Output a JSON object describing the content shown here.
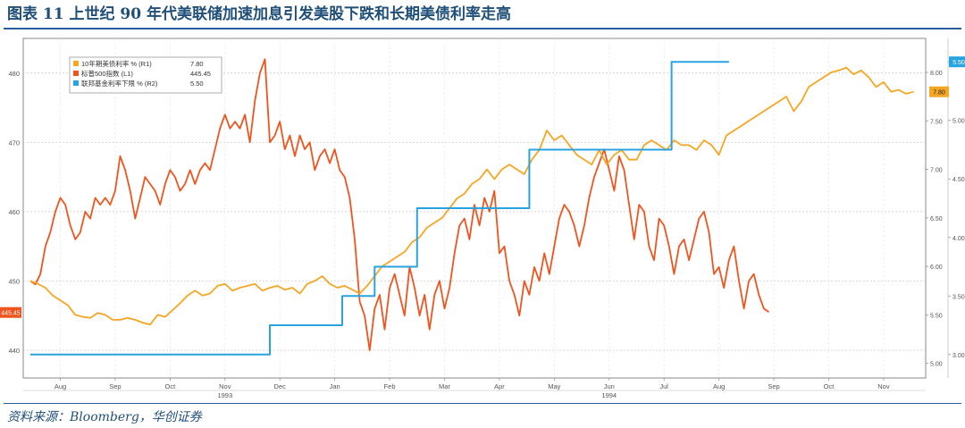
{
  "figure": {
    "title": "图表 11  上世纪 90 年代美联储加速加息引发美股下跌和长期美债利率走高",
    "source": "资料来源：Bloomberg，华创证券"
  },
  "chart_data": {
    "type": "line",
    "x_ticks": [
      "Aug",
      "Sep",
      "Oct",
      "Nov",
      "Dec",
      "Jan",
      "Feb",
      "Mar",
      "Apr",
      "May",
      "Jun",
      "Jul",
      "Aug",
      "Sep",
      "Oct",
      "Nov"
    ],
    "year_labels": [
      "1993",
      "1994"
    ],
    "left_axis": {
      "ticks": [
        440,
        450,
        460,
        470,
        480
      ],
      "ylim": [
        436,
        485
      ]
    },
    "right_axis_outer": {
      "ticks": [
        "8.00",
        "7.50",
        "7.00",
        "6.50",
        "6.00",
        "5.50",
        "5.00"
      ],
      "ylim": [
        4.85,
        8.35
      ]
    },
    "right_axis_inner": {
      "ticks": [
        "5.50",
        "5.00",
        "4.50",
        "4.00",
        "3.50",
        "3.00"
      ],
      "ylim": [
        2.8,
        5.7
      ]
    },
    "legend": [
      {
        "name": "10年期美债利率 % (R1)",
        "value": "7.80",
        "color": "#f5a623"
      },
      {
        "name": "标普500指数 (L1)",
        "value": "445.45",
        "color": "#f0541e"
      },
      {
        "name": "联邦基金利率下限 % (R2)",
        "value": "5.50",
        "color": "#29a3e0"
      }
    ],
    "last_value_flags": {
      "left": "445.45",
      "r1": "7.80",
      "r2": "5.50"
    },
    "series": [
      {
        "name": "标普500指数 (L1)",
        "axis": "L1",
        "color": "#f0541e",
        "points": [
          [
            0.0,
            450.0
          ],
          [
            0.2,
            449.5
          ],
          [
            0.4,
            451.0
          ],
          [
            0.6,
            455.0
          ],
          [
            0.8,
            457.0
          ],
          [
            1.0,
            460.0
          ],
          [
            1.2,
            462.0
          ],
          [
            1.4,
            461.0
          ],
          [
            1.6,
            458.0
          ],
          [
            1.8,
            456.0
          ],
          [
            2.0,
            457.0
          ],
          [
            2.2,
            460.0
          ],
          [
            2.4,
            459.0
          ],
          [
            2.6,
            462.0
          ],
          [
            2.8,
            461.0
          ],
          [
            3.0,
            462.0
          ],
          [
            3.2,
            461.0
          ],
          [
            3.4,
            463.0
          ],
          [
            3.6,
            468.0
          ],
          [
            3.8,
            466.0
          ],
          [
            4.0,
            463.0
          ],
          [
            4.2,
            459.0
          ],
          [
            4.4,
            462.0
          ],
          [
            4.6,
            465.0
          ],
          [
            4.8,
            464.0
          ],
          [
            5.0,
            463.0
          ],
          [
            5.2,
            461.0
          ],
          [
            5.4,
            464.0
          ],
          [
            5.6,
            466.0
          ],
          [
            5.8,
            465.0
          ],
          [
            6.0,
            463.0
          ],
          [
            6.2,
            464.0
          ],
          [
            6.4,
            466.0
          ],
          [
            6.6,
            464.0
          ],
          [
            6.8,
            466.0
          ],
          [
            7.0,
            467.0
          ],
          [
            7.2,
            466.0
          ],
          [
            7.4,
            469.0
          ],
          [
            7.6,
            472.0
          ],
          [
            7.8,
            474.0
          ],
          [
            8.0,
            472.0
          ],
          [
            8.2,
            473.0
          ],
          [
            8.4,
            472.0
          ],
          [
            8.6,
            474.0
          ],
          [
            8.8,
            470.0
          ],
          [
            9.0,
            476.0
          ],
          [
            9.2,
            480.0
          ],
          [
            9.4,
            482.0
          ],
          [
            9.6,
            470.0
          ],
          [
            9.8,
            471.0
          ],
          [
            10.0,
            473.0
          ],
          [
            10.2,
            469.0
          ],
          [
            10.4,
            471.0
          ],
          [
            10.6,
            468.0
          ],
          [
            10.8,
            471.0
          ],
          [
            11.0,
            469.0
          ],
          [
            11.2,
            470.0
          ],
          [
            11.4,
            466.0
          ],
          [
            11.6,
            468.0
          ],
          [
            11.8,
            469.0
          ],
          [
            12.0,
            467.0
          ],
          [
            12.2,
            469.0
          ],
          [
            12.4,
            466.0
          ],
          [
            12.6,
            465.0
          ],
          [
            12.8,
            462.0
          ],
          [
            13.0,
            456.0
          ],
          [
            13.2,
            447.0
          ],
          [
            13.4,
            445.0
          ],
          [
            13.6,
            440.0
          ],
          [
            13.8,
            446.0
          ],
          [
            14.0,
            448.0
          ],
          [
            14.2,
            443.0
          ],
          [
            14.4,
            449.0
          ],
          [
            14.6,
            451.0
          ],
          [
            14.8,
            448.0
          ],
          [
            15.0,
            445.0
          ],
          [
            15.2,
            452.0
          ],
          [
            15.4,
            449.0
          ],
          [
            15.6,
            445.0
          ],
          [
            15.8,
            448.0
          ],
          [
            16.0,
            443.0
          ],
          [
            16.2,
            448.0
          ],
          [
            16.4,
            450.0
          ],
          [
            16.6,
            446.0
          ],
          [
            16.8,
            449.0
          ],
          [
            17.0,
            454.0
          ],
          [
            17.2,
            458.0
          ],
          [
            17.4,
            459.0
          ],
          [
            17.6,
            456.0
          ],
          [
            17.8,
            461.0
          ],
          [
            18.0,
            458.0
          ],
          [
            18.2,
            462.0
          ],
          [
            18.4,
            460.0
          ],
          [
            18.6,
            463.0
          ],
          [
            18.8,
            454.0
          ],
          [
            19.0,
            455.0
          ],
          [
            19.2,
            450.0
          ],
          [
            19.4,
            448.0
          ],
          [
            19.6,
            445.0
          ],
          [
            19.8,
            450.0
          ],
          [
            20.0,
            448.0
          ],
          [
            20.2,
            452.0
          ],
          [
            20.4,
            450.0
          ],
          [
            20.6,
            454.0
          ],
          [
            20.8,
            451.0
          ],
          [
            21.0,
            455.0
          ],
          [
            21.2,
            459.0
          ],
          [
            21.4,
            461.0
          ],
          [
            21.6,
            460.0
          ],
          [
            21.8,
            458.0
          ],
          [
            22.0,
            455.0
          ],
          [
            22.2,
            458.0
          ],
          [
            22.4,
            462.0
          ],
          [
            22.6,
            465.0
          ],
          [
            22.8,
            467.0
          ],
          [
            23.0,
            469.0
          ],
          [
            23.2,
            466.0
          ],
          [
            23.4,
            463.0
          ],
          [
            23.6,
            468.0
          ],
          [
            23.8,
            466.0
          ],
          [
            24.0,
            461.0
          ],
          [
            24.2,
            456.0
          ],
          [
            24.4,
            461.0
          ],
          [
            24.6,
            460.0
          ],
          [
            24.8,
            455.0
          ],
          [
            25.0,
            453.0
          ],
          [
            25.2,
            459.0
          ],
          [
            25.4,
            458.0
          ],
          [
            25.6,
            455.0
          ],
          [
            25.8,
            451.0
          ],
          [
            26.0,
            455.0
          ],
          [
            26.2,
            456.0
          ],
          [
            26.4,
            453.0
          ],
          [
            26.6,
            456.0
          ],
          [
            26.8,
            459.0
          ],
          [
            27.0,
            460.0
          ],
          [
            27.2,
            457.0
          ],
          [
            27.4,
            451.0
          ],
          [
            27.6,
            452.0
          ],
          [
            27.8,
            449.0
          ],
          [
            28.0,
            453.0
          ],
          [
            28.2,
            455.0
          ],
          [
            28.4,
            450.0
          ],
          [
            28.6,
            446.0
          ],
          [
            28.8,
            450.0
          ],
          [
            29.0,
            451.0
          ],
          [
            29.2,
            448.0
          ],
          [
            29.4,
            446.0
          ],
          [
            29.6,
            445.5
          ]
        ]
      },
      {
        "name": "10年期美债利率 % (R1)",
        "axis": "R1",
        "color": "#f5a623",
        "points": [
          [
            0.0,
            5.85
          ],
          [
            0.3,
            5.82
          ],
          [
            0.6,
            5.78
          ],
          [
            0.9,
            5.7
          ],
          [
            1.2,
            5.65
          ],
          [
            1.5,
            5.6
          ],
          [
            1.8,
            5.5
          ],
          [
            2.1,
            5.48
          ],
          [
            2.4,
            5.47
          ],
          [
            2.7,
            5.52
          ],
          [
            3.0,
            5.5
          ],
          [
            3.3,
            5.45
          ],
          [
            3.6,
            5.45
          ],
          [
            3.9,
            5.47
          ],
          [
            4.2,
            5.45
          ],
          [
            4.5,
            5.42
          ],
          [
            4.8,
            5.4
          ],
          [
            5.1,
            5.5
          ],
          [
            5.4,
            5.48
          ],
          [
            5.7,
            5.55
          ],
          [
            6.0,
            5.62
          ],
          [
            6.3,
            5.7
          ],
          [
            6.6,
            5.75
          ],
          [
            6.9,
            5.7
          ],
          [
            7.2,
            5.72
          ],
          [
            7.5,
            5.8
          ],
          [
            7.8,
            5.82
          ],
          [
            8.1,
            5.75
          ],
          [
            8.4,
            5.78
          ],
          [
            8.7,
            5.8
          ],
          [
            9.0,
            5.82
          ],
          [
            9.3,
            5.75
          ],
          [
            9.6,
            5.78
          ],
          [
            9.9,
            5.8
          ],
          [
            10.2,
            5.76
          ],
          [
            10.5,
            5.78
          ],
          [
            10.8,
            5.72
          ],
          [
            11.1,
            5.82
          ],
          [
            11.4,
            5.85
          ],
          [
            11.7,
            5.9
          ],
          [
            12.0,
            5.82
          ],
          [
            12.3,
            5.78
          ],
          [
            12.6,
            5.8
          ],
          [
            12.9,
            5.76
          ],
          [
            13.2,
            5.72
          ],
          [
            13.5,
            5.8
          ],
          [
            13.8,
            5.9
          ],
          [
            14.1,
            6.0
          ],
          [
            14.4,
            6.05
          ],
          [
            14.7,
            6.1
          ],
          [
            15.0,
            6.15
          ],
          [
            15.3,
            6.25
          ],
          [
            15.6,
            6.3
          ],
          [
            15.9,
            6.4
          ],
          [
            16.2,
            6.45
          ],
          [
            16.5,
            6.5
          ],
          [
            16.8,
            6.6
          ],
          [
            17.1,
            6.7
          ],
          [
            17.4,
            6.75
          ],
          [
            17.7,
            6.85
          ],
          [
            18.0,
            6.9
          ],
          [
            18.3,
            7.0
          ],
          [
            18.6,
            6.9
          ],
          [
            18.9,
            7.0
          ],
          [
            19.2,
            7.05
          ],
          [
            19.5,
            7.0
          ],
          [
            19.8,
            6.95
          ],
          [
            20.1,
            7.1
          ],
          [
            20.4,
            7.2
          ],
          [
            20.7,
            7.4
          ],
          [
            21.0,
            7.3
          ],
          [
            21.3,
            7.35
          ],
          [
            21.6,
            7.25
          ],
          [
            21.9,
            7.15
          ],
          [
            22.2,
            7.1
          ],
          [
            22.5,
            7.05
          ],
          [
            22.8,
            7.2
          ],
          [
            23.1,
            7.05
          ],
          [
            23.4,
            7.15
          ],
          [
            23.7,
            7.2
          ],
          [
            24.0,
            7.1
          ],
          [
            24.3,
            7.1
          ],
          [
            24.6,
            7.25
          ],
          [
            24.9,
            7.3
          ],
          [
            25.2,
            7.25
          ],
          [
            25.5,
            7.2
          ],
          [
            25.8,
            7.3
          ],
          [
            26.1,
            7.25
          ],
          [
            26.4,
            7.25
          ],
          [
            26.7,
            7.2
          ],
          [
            27.0,
            7.3
          ],
          [
            27.3,
            7.25
          ],
          [
            27.6,
            7.15
          ],
          [
            27.9,
            7.35
          ],
          [
            28.2,
            7.4
          ],
          [
            28.5,
            7.45
          ],
          [
            28.8,
            7.5
          ],
          [
            29.1,
            7.55
          ],
          [
            29.4,
            7.6
          ],
          [
            29.7,
            7.65
          ],
          [
            30.0,
            7.7
          ],
          [
            30.3,
            7.75
          ],
          [
            30.6,
            7.6
          ],
          [
            30.9,
            7.7
          ],
          [
            31.2,
            7.85
          ],
          [
            31.5,
            7.9
          ],
          [
            31.8,
            7.95
          ],
          [
            32.1,
            8.0
          ],
          [
            32.4,
            8.02
          ],
          [
            32.7,
            8.05
          ],
          [
            33.0,
            7.98
          ],
          [
            33.3,
            8.02
          ],
          [
            33.6,
            7.95
          ],
          [
            33.9,
            7.85
          ],
          [
            34.2,
            7.9
          ],
          [
            34.5,
            7.8
          ],
          [
            34.8,
            7.82
          ],
          [
            35.1,
            7.78
          ],
          [
            35.4,
            7.8
          ]
        ]
      },
      {
        "name": "联邦基金利率下限 % (R2)",
        "axis": "R2",
        "color": "#29a3e0",
        "points": [
          [
            0,
            3.0
          ],
          [
            9.6,
            3.0
          ],
          [
            9.6,
            3.25
          ],
          [
            12.5,
            3.25
          ],
          [
            12.5,
            3.5
          ],
          [
            13.8,
            3.5
          ],
          [
            13.8,
            3.75
          ],
          [
            15.5,
            3.75
          ],
          [
            15.5,
            4.25
          ],
          [
            20.0,
            4.25
          ],
          [
            20.0,
            4.75
          ],
          [
            25.7,
            4.75
          ],
          [
            25.7,
            5.5
          ],
          [
            28.0,
            5.5
          ]
        ]
      }
    ]
  }
}
